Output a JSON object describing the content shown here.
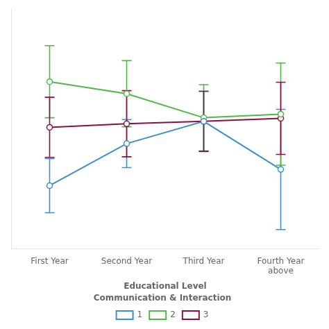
{
  "chart_data": {
    "type": "line",
    "categories": [
      "First Year",
      "Second Year",
      "Third Year",
      "Fourth Year\nabove"
    ],
    "xlabel": "Educational Level",
    "legend_title": "Communication & Interaction",
    "legend": "bottom",
    "grid": false,
    "tick_labels": "x",
    "ylim": [
      1.5,
      5.5
    ],
    "series": [
      {
        "name": "1",
        "color": "#3b8fcc",
        "marker": "circle",
        "values": [
          2.55,
          3.25,
          3.62,
          2.82
        ],
        "yerr": [
          0.45,
          0.4,
          0.5,
          1.0
        ]
      },
      {
        "name": "2",
        "color": "#4db848",
        "marker": "circle",
        "values": [
          4.28,
          4.08,
          3.68,
          3.74
        ],
        "yerr": [
          0.6,
          0.55,
          0.55,
          0.85
        ]
      },
      {
        "name": "3",
        "color": "#8b1040",
        "marker": "circle",
        "values": [
          3.52,
          3.58,
          3.62,
          3.67
        ],
        "yerr": [
          0.5,
          0.55,
          0.5,
          0.6
        ]
      }
    ]
  }
}
